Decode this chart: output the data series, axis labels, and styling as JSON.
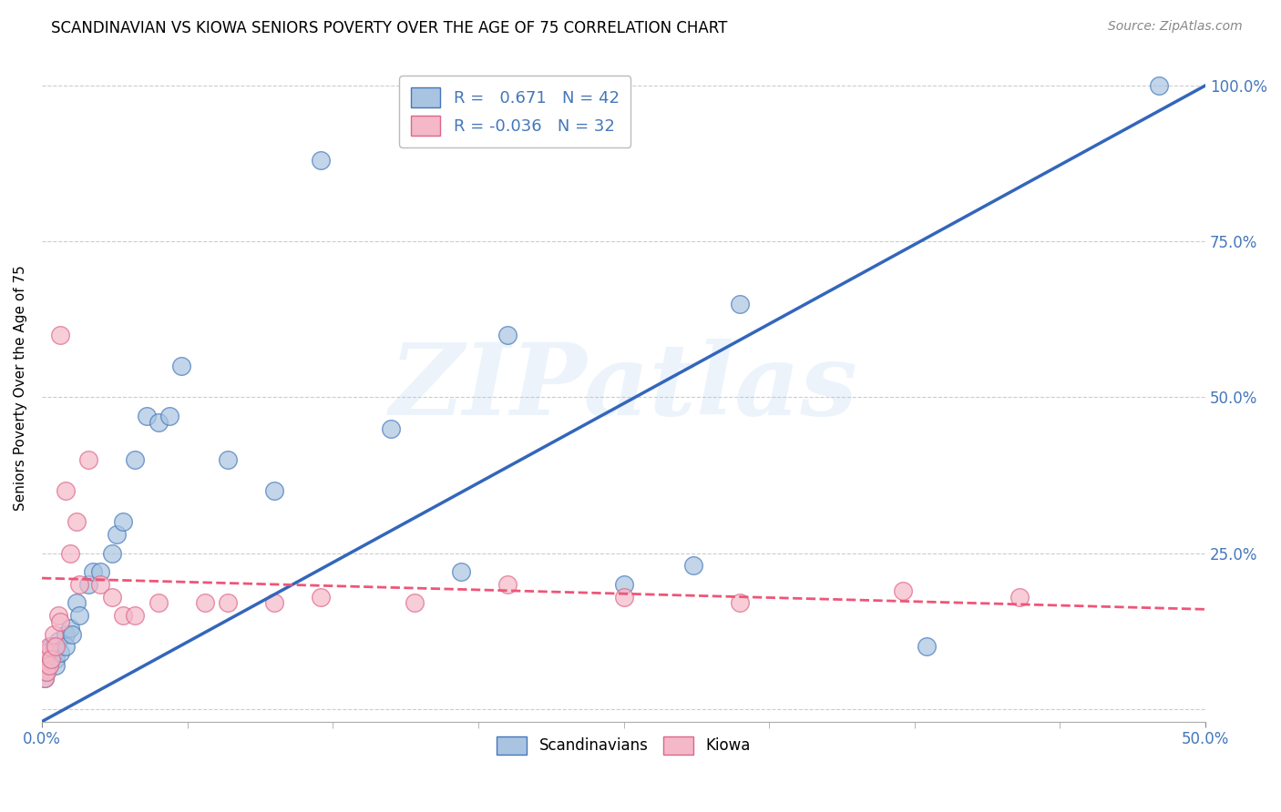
{
  "title": "SCANDINAVIAN VS KIOWA SENIORS POVERTY OVER THE AGE OF 75 CORRELATION CHART",
  "source": "Source: ZipAtlas.com",
  "ylabel": "Seniors Poverty Over the Age of 75",
  "xlim": [
    0.0,
    0.5
  ],
  "ylim": [
    -0.02,
    1.05
  ],
  "xtick_positions": [
    0.0,
    0.5
  ],
  "xtick_labels": [
    "0.0%",
    "50.0%"
  ],
  "ytick_positions": [
    0.0,
    0.25,
    0.5,
    0.75,
    1.0
  ],
  "ytick_labels": [
    "",
    "25.0%",
    "50.0%",
    "75.0%",
    "100.0%"
  ],
  "r_scandinavian": 0.671,
  "n_scandinavian": 42,
  "r_kiowa": -0.036,
  "n_kiowa": 32,
  "blue_fill": "#A8C4E0",
  "blue_edge": "#4477BB",
  "pink_fill": "#F4B8C8",
  "pink_edge": "#DD6688",
  "blue_line": "#3366BB",
  "pink_line": "#EE5577",
  "watermark": "ZIPatlas",
  "grid_color": "#CCCCCC",
  "right_label_color": "#4477BB",
  "scandinavian_x": [
    0.001,
    0.001,
    0.002,
    0.002,
    0.003,
    0.003,
    0.004,
    0.004,
    0.005,
    0.005,
    0.006,
    0.006,
    0.007,
    0.008,
    0.01,
    0.01,
    0.012,
    0.013,
    0.015,
    0.016,
    0.02,
    0.022,
    0.025,
    0.03,
    0.032,
    0.035,
    0.04,
    0.045,
    0.05,
    0.055,
    0.06,
    0.08,
    0.1,
    0.12,
    0.15,
    0.18,
    0.2,
    0.25,
    0.28,
    0.3,
    0.38,
    0.48
  ],
  "scandinavian_y": [
    0.05,
    0.07,
    0.08,
    0.06,
    0.09,
    0.07,
    0.1,
    0.08,
    0.1,
    0.09,
    0.08,
    0.07,
    0.11,
    0.09,
    0.12,
    0.1,
    0.13,
    0.12,
    0.17,
    0.15,
    0.2,
    0.22,
    0.22,
    0.25,
    0.28,
    0.3,
    0.4,
    0.47,
    0.46,
    0.47,
    0.55,
    0.4,
    0.35,
    0.88,
    0.45,
    0.22,
    0.6,
    0.2,
    0.23,
    0.65,
    0.1,
    1.0
  ],
  "kiowa_x": [
    0.001,
    0.001,
    0.002,
    0.002,
    0.003,
    0.003,
    0.004,
    0.005,
    0.006,
    0.007,
    0.008,
    0.008,
    0.01,
    0.012,
    0.015,
    0.016,
    0.02,
    0.025,
    0.03,
    0.035,
    0.04,
    0.05,
    0.07,
    0.08,
    0.1,
    0.12,
    0.16,
    0.2,
    0.25,
    0.3,
    0.37,
    0.42
  ],
  "kiowa_y": [
    0.05,
    0.08,
    0.06,
    0.09,
    0.1,
    0.07,
    0.08,
    0.12,
    0.1,
    0.15,
    0.14,
    0.6,
    0.35,
    0.25,
    0.3,
    0.2,
    0.4,
    0.2,
    0.18,
    0.15,
    0.15,
    0.17,
    0.17,
    0.17,
    0.17,
    0.18,
    0.17,
    0.2,
    0.18,
    0.17,
    0.19,
    0.18
  ],
  "sc_line_x0": 0.0,
  "sc_line_y0": -0.02,
  "sc_line_x1": 0.5,
  "sc_line_y1": 1.0,
  "ki_line_x0": 0.0,
  "ki_line_y0": 0.21,
  "ki_line_x1": 0.5,
  "ki_line_y1": 0.16
}
